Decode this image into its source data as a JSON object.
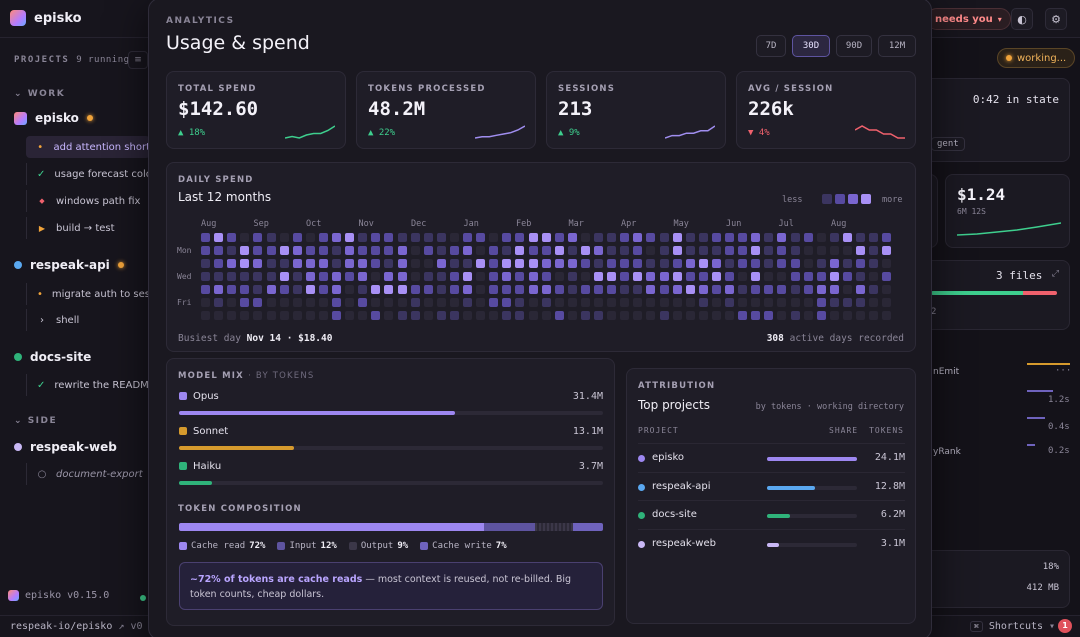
{
  "app": {
    "name": "episko",
    "version": "episko v0.15.0",
    "repo": "respeak-io/episko",
    "repo_suffix": "v0",
    "needs_you": "needs you",
    "shortcuts": "Shortcuts"
  },
  "sidebar": {
    "projects_label": "PROJECTS",
    "running": "9 running",
    "sections": {
      "work": "WORK",
      "side": "SIDE"
    },
    "projects": [
      {
        "name": "episko",
        "tasks": [
          {
            "icon": "•",
            "label": "add attention short"
          },
          {
            "icon": "✓",
            "label": "usage forecast colou"
          },
          {
            "icon": "◆",
            "label": "windows path fix"
          },
          {
            "icon": "▶",
            "label": "build → test"
          }
        ]
      },
      {
        "name": "respeak-api",
        "tasks": [
          {
            "icon": "•",
            "label": "migrate auth to sess"
          },
          {
            "icon": "›",
            "label": "shell"
          }
        ]
      },
      {
        "name": "docs-site",
        "tasks": [
          {
            "icon": "✓",
            "label": "rewrite the README"
          }
        ]
      },
      {
        "name": "respeak-web",
        "tasks": [
          {
            "icon": "○",
            "label": "document-export"
          }
        ]
      }
    ]
  },
  "right": {
    "working": "working...",
    "state_time": "0:42 in state",
    "agent": "gent",
    "cost": "$1.24",
    "cost_sub": "6M 12S",
    "files": "3 files",
    "files_sub": "2",
    "emit": "nEmit",
    "t1": "1.2s",
    "t2": "0.4s",
    "rank": "yRank",
    "t3": "0.2s",
    "pct": "18%",
    "mem": "412 MB"
  },
  "modal": {
    "kicker": "ANALYTICS",
    "title": "Usage & spend",
    "ranges": [
      "7D",
      "30D",
      "90D",
      "12M"
    ],
    "active_range": "30D",
    "stats": [
      {
        "label": "TOTAL SPEND",
        "value": "$142.60",
        "delta": "▲ 18%",
        "dir": "up",
        "spark": [
          3,
          4,
          3,
          5,
          6,
          6,
          8,
          11
        ]
      },
      {
        "label": "TOKENS PROCESSED",
        "value": "48.2M",
        "delta": "▲ 22%",
        "dir": "up",
        "spark": [
          2,
          3,
          3,
          4,
          5,
          6,
          8,
          11
        ]
      },
      {
        "label": "SESSIONS",
        "value": "213",
        "delta": "▲ 9%",
        "dir": "up",
        "spark": [
          3,
          4,
          4,
          5,
          5,
          6,
          6,
          8
        ]
      },
      {
        "label": "AVG / SESSION",
        "value": "226k",
        "delta": "▼ 4%",
        "dir": "down",
        "spark": [
          8,
          9,
          8,
          8,
          7,
          7,
          6,
          6
        ]
      }
    ],
    "daily": {
      "kicker": "DAILY SPEND",
      "title": "Last 12 months",
      "less": "less",
      "more": "more",
      "months": [
        "Aug",
        "Sep",
        "Oct",
        "Nov",
        "Dec",
        "Jan",
        "Feb",
        "Mar",
        "Apr",
        "May",
        "Jun",
        "Jul",
        "Aug"
      ],
      "days": [
        "Mon",
        "Wed",
        "Fri"
      ],
      "busiest_label": "Busiest day",
      "busiest_value": "Nov 14 · $18.40",
      "active_days": "308",
      "active_label": "active days recorded"
    },
    "model_mix": {
      "kicker": "MODEL MIX",
      "kicker_sub": "· BY TOKENS",
      "models": [
        {
          "name": "Opus",
          "value": "31.4M",
          "share": 0.652,
          "color": "#9d87f0"
        },
        {
          "name": "Sonnet",
          "value": "13.1M",
          "share": 0.272,
          "color": "#d69a2d"
        },
        {
          "name": "Haiku",
          "value": "3.7M",
          "share": 0.077,
          "color": "#2fb37a"
        }
      ],
      "composition_label": "TOKEN COMPOSITION",
      "composition": [
        {
          "name": "Cache read",
          "pct": "72%",
          "share": 0.72,
          "color": "#9d87f0"
        },
        {
          "name": "Input",
          "pct": "12%",
          "share": 0.12,
          "color": "#5e54a0"
        },
        {
          "name": "Output",
          "pct": "9%",
          "share": 0.09,
          "color": "#3b3748"
        },
        {
          "name": "Cache write",
          "pct": "7%",
          "share": 0.07,
          "color": "#6f63bd"
        }
      ],
      "note_bold": "~72% of tokens are cache reads",
      "note_rest": "— most context is reused, not re-billed. Big token counts, cheap dollars."
    },
    "attribution": {
      "kicker": "ATTRIBUTION",
      "title": "Top projects",
      "sub": "by tokens · working directory",
      "col_project": "PROJECT",
      "col_share": "SHARE",
      "col_tokens": "TOKENS",
      "rows": [
        {
          "name": "episko",
          "tokens": "24.1M",
          "share": 1.0,
          "color": "#9d87f0"
        },
        {
          "name": "respeak-api",
          "tokens": "12.8M",
          "share": 0.53,
          "color": "#5aa8f0"
        },
        {
          "name": "docs-site",
          "tokens": "6.2M",
          "share": 0.26,
          "color": "#2fb37a"
        },
        {
          "name": "respeak-web",
          "tokens": "3.1M",
          "share": 0.13,
          "color": "#c9b8f5"
        }
      ]
    }
  }
}
